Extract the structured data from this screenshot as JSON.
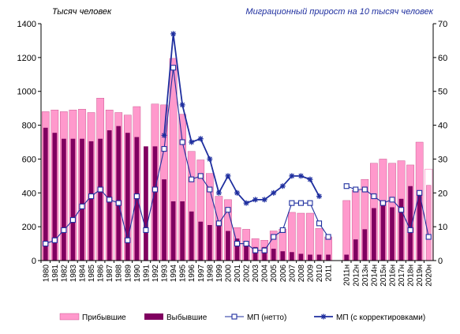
{
  "chart_data": {
    "type": "bar",
    "ylabel_left": "Тысяч человек",
    "ylabel_right": "Миграционный прирост на 10 тысяч человек",
    "ylim_left": [
      0,
      1400
    ],
    "ylim_right": [
      0,
      70
    ],
    "yticks_left": [
      "0",
      "200",
      "400",
      "600",
      "800",
      "1000",
      "1200",
      "1400"
    ],
    "yticks_right": [
      "0",
      "10",
      "20",
      "30",
      "40",
      "50",
      "60",
      "70"
    ],
    "categories": [
      "1980",
      "1981",
      "1982",
      "1983",
      "1984",
      "1985",
      "1986",
      "1987",
      "1988",
      "1989",
      "1990",
      "1991",
      "1992",
      "1993",
      "1994",
      "1995",
      "1996",
      "1997",
      "1998",
      "1999",
      "2000",
      "2001",
      "2002",
      "2003",
      "2004",
      "2005",
      "2006",
      "2007",
      "2008",
      "2009",
      "2010",
      "2011",
      "",
      "2011н",
      "2012н",
      "2013н",
      "2014н",
      "2015н",
      "2016н",
      "2017н",
      "2018н",
      "2019н",
      "2020н"
    ],
    "series": [
      {
        "name": "Прибывшие",
        "kind": "bar",
        "color": "#ff99cc",
        "values": [
          880,
          890,
          880,
          890,
          895,
          875,
          960,
          890,
          875,
          860,
          910,
          null,
          925,
          920,
          1195,
          865,
          645,
          595,
          515,
          380,
          360,
          195,
          185,
          130,
          120,
          175,
          185,
          285,
          280,
          280,
          190,
          140,
          null,
          355,
          415,
          480,
          575,
          600,
          575,
          590,
          565,
          700,
          null
        ]
      },
      {
        "name": "Выбывшие",
        "kind": "bar",
        "color": "#800060",
        "values": [
          785,
          755,
          720,
          720,
          720,
          705,
          720,
          770,
          795,
          755,
          730,
          675,
          675,
          480,
          350,
          350,
          290,
          230,
          210,
          210,
          175,
          130,
          100,
          80,
          80,
          70,
          55,
          50,
          40,
          35,
          35,
          35,
          null,
          35,
          125,
          185,
          310,
          350,
          315,
          365,
          440,
          415,
          null
        ]
      },
      {
        "name": "МП  (нетто)",
        "kind": "line",
        "color": "#1f2f9f",
        "marker": "square",
        "values": [
          5,
          6,
          9,
          12,
          16,
          19,
          21,
          18,
          17,
          6,
          19,
          9,
          21,
          33,
          57,
          35,
          24,
          25,
          21,
          11,
          15,
          5,
          5,
          3,
          3,
          7,
          9,
          17,
          17,
          17,
          11,
          7,
          null,
          22,
          21,
          21,
          19,
          17,
          18,
          15,
          9,
          20,
          7
        ]
      },
      {
        "name": "МП   (с корректировками)",
        "kind": "line",
        "color": "#1f2f9f",
        "marker": "star",
        "values": [
          null,
          null,
          null,
          null,
          null,
          null,
          null,
          null,
          null,
          null,
          null,
          null,
          null,
          37,
          67,
          46,
          35,
          36,
          30,
          20,
          25,
          20,
          17,
          18,
          18,
          20,
          22,
          25,
          25,
          24,
          19,
          null,
          null,
          null,
          null,
          null,
          null,
          null,
          null,
          null,
          null,
          null,
          null
        ]
      }
    ],
    "extra_2020": {
      "arrivals_open_box": 540,
      "departures_pink_bar": 445
    },
    "legend": {
      "placement": "bottom",
      "items": [
        {
          "label": "Прибывшие",
          "swatch": "bar",
          "color": "#ff99cc"
        },
        {
          "label": "Выбывшие",
          "swatch": "bar",
          "color": "#800060"
        },
        {
          "label": "МП  (нетто)",
          "swatch": "line-square",
          "color": "#1f2f9f"
        },
        {
          "label": "МП   (с корректировками)",
          "swatch": "line-star",
          "color": "#1f2f9f"
        }
      ]
    },
    "grid": false
  }
}
